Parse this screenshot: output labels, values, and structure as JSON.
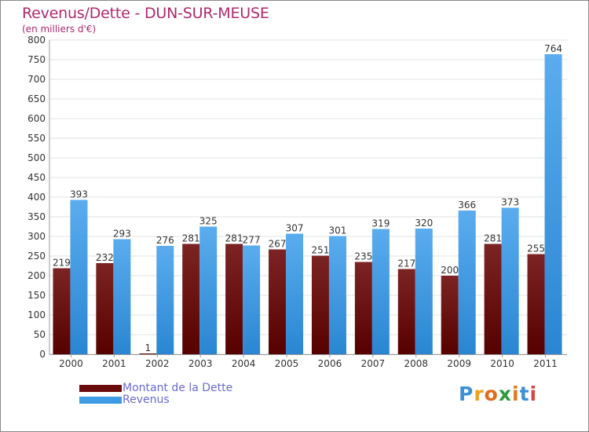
{
  "header": {
    "title": "Revenus/Dette - DUN-SUR-MEUSE",
    "subtitle": "(en milliers d'€)"
  },
  "legend": {
    "items": [
      {
        "label": "Montant de la Dette",
        "color": "#6b0a0a"
      },
      {
        "label": "Revenus",
        "color": "#3f9be3"
      }
    ]
  },
  "logo": {
    "text": "Proxiti"
  },
  "colors": {
    "dette": "#6b0a0a",
    "revenus": "#3f9be3",
    "title": "#b0286c",
    "legend_text": "#6a6ad6"
  },
  "chart_data": {
    "type": "bar",
    "title": "Revenus/Dette - DUN-SUR-MEUSE",
    "subtitle": "(en milliers d'€)",
    "categories": [
      "2000",
      "2001",
      "2002",
      "2003",
      "2004",
      "2005",
      "2006",
      "2007",
      "2008",
      "2009",
      "2010",
      "2011"
    ],
    "series": [
      {
        "name": "Montant de la Dette",
        "values": [
          219,
          232,
          1,
          281,
          281,
          267,
          251,
          235,
          217,
          200,
          281,
          255
        ]
      },
      {
        "name": "Revenus",
        "values": [
          393,
          293,
          276,
          325,
          277,
          307,
          301,
          319,
          320,
          366,
          373,
          764
        ]
      }
    ],
    "yticks": [
      0,
      50,
      100,
      150,
      200,
      250,
      300,
      350,
      400,
      450,
      500,
      550,
      600,
      650,
      700,
      750,
      800
    ],
    "ylim": [
      0,
      800
    ],
    "grid": true,
    "legend_position": "bottom-left"
  }
}
